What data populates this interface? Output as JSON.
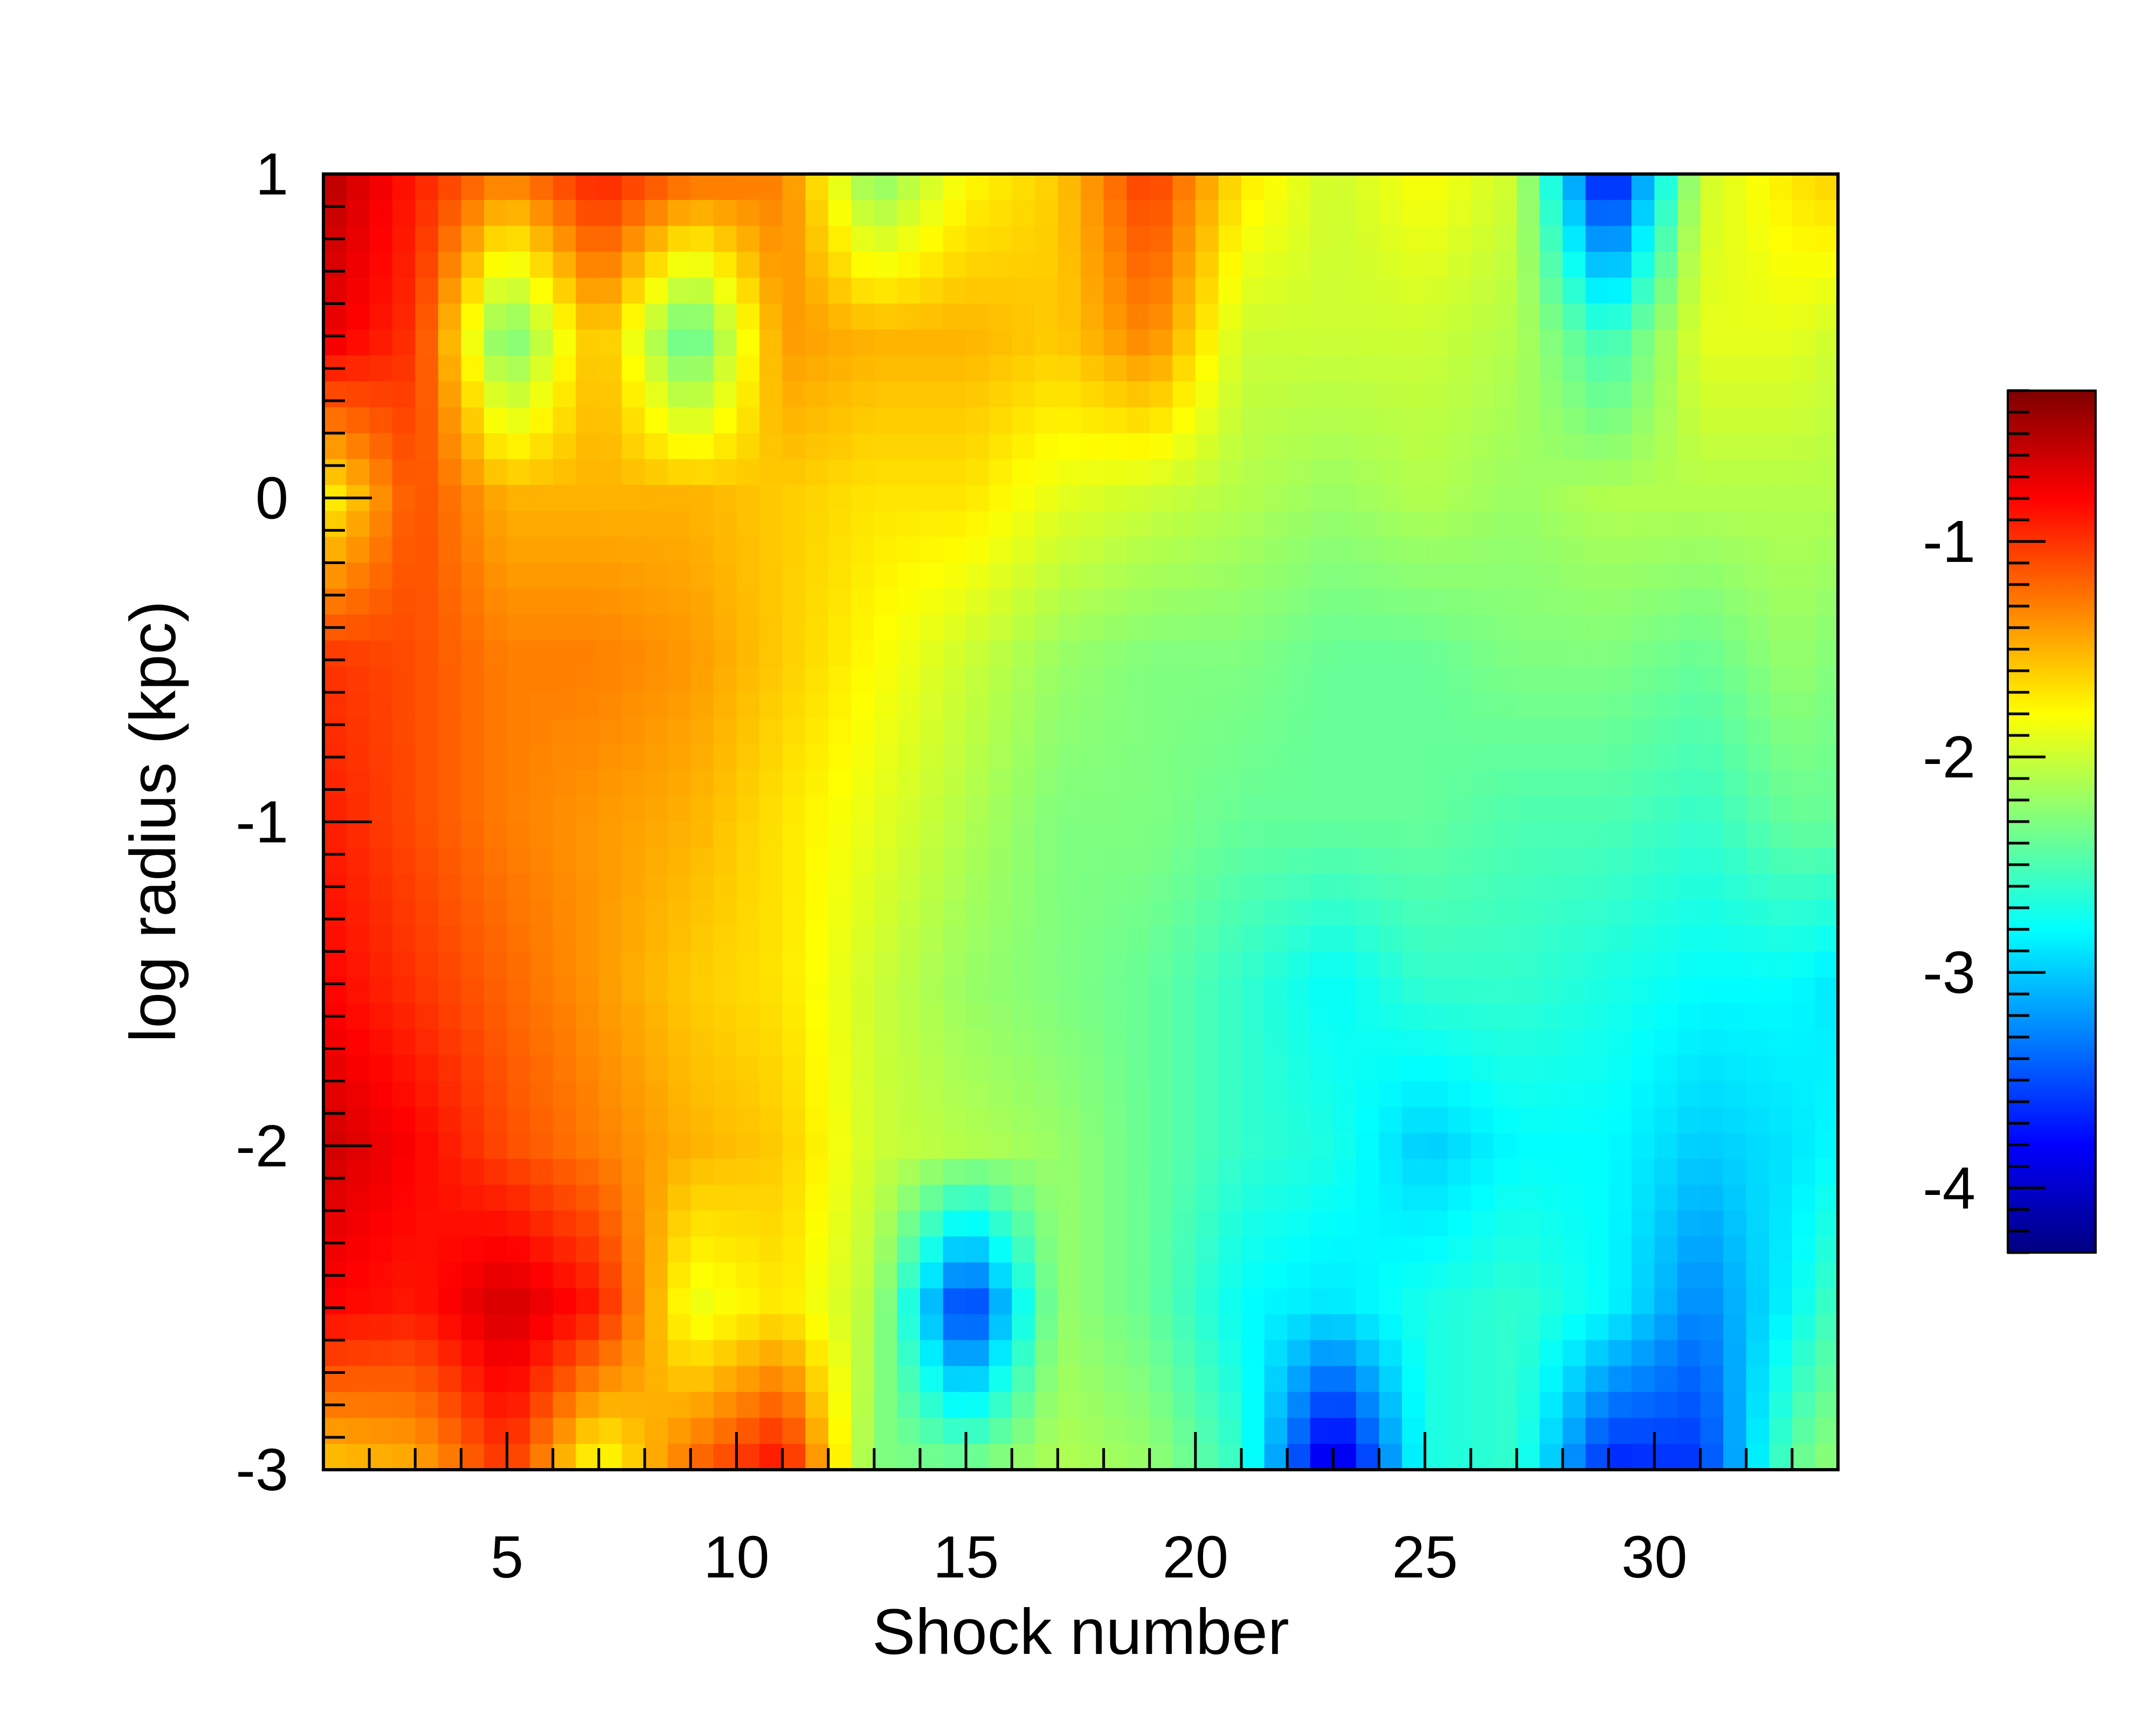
{
  "chart_data": {
    "type": "heatmap",
    "title": "",
    "xlabel": "Shock number",
    "ylabel": "log radius (kpc)",
    "xlim": [
      1,
      34
    ],
    "ylim": [
      -3,
      1
    ],
    "x_ticks": [
      5,
      10,
      15,
      20,
      25,
      30
    ],
    "y_ticks": [
      1,
      0,
      -1,
      -2,
      -3
    ],
    "colorbar": {
      "range": [
        -4.3,
        -0.3
      ],
      "ticks": [
        -1,
        -2,
        -3,
        -4
      ],
      "colormap": "jet",
      "colormap_stops": [
        "#00007f",
        "#0000ff",
        "#007fff",
        "#00ffff",
        "#7fff7f",
        "#ffff00",
        "#ff7f00",
        "#ff0000",
        "#7f0000"
      ]
    },
    "x": [
      1,
      3,
      5,
      7,
      9,
      11,
      13,
      15,
      17,
      19,
      21,
      23,
      25,
      27,
      29,
      31,
      33,
      34
    ],
    "y": [
      1,
      0.5,
      0,
      -0.5,
      -1,
      -1.5,
      -2,
      -2.5,
      -3
    ],
    "z": [
      [
        -0.5,
        -0.9,
        -1.3,
        -0.9,
        -1.2,
        -1.3,
        -2.3,
        -1.8,
        -1.6,
        -1.0,
        -1.7,
        -2.0,
        -1.8,
        -2.0,
        -3.9,
        -2.0,
        -1.7,
        -1.6
      ],
      [
        -0.7,
        -1.0,
        -2.4,
        -1.5,
        -2.5,
        -1.4,
        -1.5,
        -1.5,
        -1.6,
        -1.3,
        -2.0,
        -2.0,
        -2.0,
        -2.1,
        -2.6,
        -1.9,
        -1.9,
        -2.0
      ],
      [
        -1.8,
        -1.1,
        -1.5,
        -1.5,
        -1.5,
        -1.6,
        -1.7,
        -1.7,
        -1.9,
        -2.0,
        -2.1,
        -2.2,
        -2.1,
        -2.2,
        -2.1,
        -2.1,
        -2.1,
        -2.1
      ],
      [
        -1.0,
        -1.1,
        -1.3,
        -1.3,
        -1.4,
        -1.6,
        -1.8,
        -2.0,
        -2.2,
        -2.3,
        -2.3,
        -2.4,
        -2.4,
        -2.3,
        -2.3,
        -2.4,
        -2.2,
        -2.3
      ],
      [
        -0.9,
        -1.1,
        -1.3,
        -1.4,
        -1.5,
        -1.7,
        -1.9,
        -2.1,
        -2.3,
        -2.3,
        -2.4,
        -2.4,
        -2.4,
        -2.5,
        -2.5,
        -2.6,
        -2.4,
        -2.4
      ],
      [
        -0.8,
        -1.0,
        -1.2,
        -1.4,
        -1.6,
        -1.7,
        -2.0,
        -2.2,
        -2.3,
        -2.4,
        -2.6,
        -2.8,
        -2.6,
        -2.6,
        -2.7,
        -2.8,
        -2.8,
        -2.9
      ],
      [
        -0.6,
        -0.8,
        -1.1,
        -1.3,
        -1.5,
        -1.6,
        -2.0,
        -2.1,
        -2.2,
        -2.4,
        -2.6,
        -2.7,
        -3.0,
        -2.8,
        -2.8,
        -3.0,
        -2.9,
        -2.8
      ],
      [
        -0.8,
        -0.9,
        -0.6,
        -0.9,
        -1.9,
        -1.7,
        -2.1,
        -3.7,
        -2.2,
        -2.4,
        -2.8,
        -2.9,
        -2.7,
        -2.6,
        -2.8,
        -3.3,
        -2.8,
        -2.5
      ],
      [
        -1.6,
        -1.5,
        -1.0,
        -1.9,
        -1.2,
        -0.8,
        -2.3,
        -2.3,
        -2.1,
        -2.2,
        -2.6,
        -4.1,
        -2.7,
        -2.6,
        -3.7,
        -3.6,
        -2.4,
        -2.2
      ]
    ]
  }
}
